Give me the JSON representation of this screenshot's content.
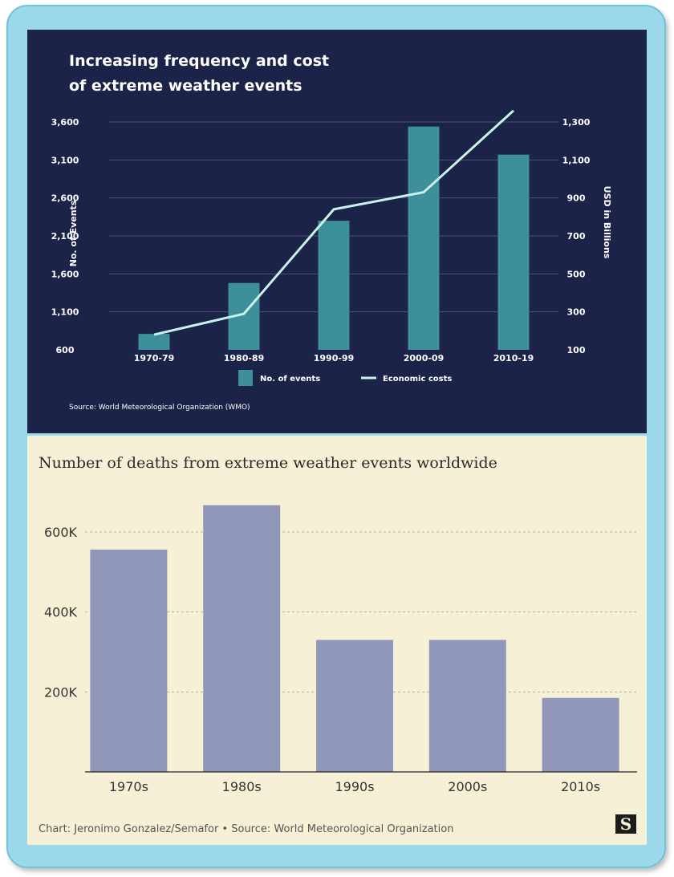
{
  "chart_data": [
    {
      "type": "bar",
      "title_lines": [
        "Increasing frequency and cost",
        "of  extreme weather events"
      ],
      "categories": [
        "1970-79",
        "1980-89",
        "1990-99",
        "2000-09",
        "2010-19"
      ],
      "ylabel": "No. of Events",
      "y2label": "USD in Billions",
      "ylim": [
        600,
        3600
      ],
      "y_ticks": [
        "3,600",
        "3,100",
        "2,600",
        "2,100",
        "1,600",
        "1,100",
        "600"
      ],
      "y2lim": [
        100,
        1300
      ],
      "y2_ticks": [
        "1,300",
        "1,100",
        "900",
        "700",
        "500",
        "300",
        "100"
      ],
      "series": [
        {
          "name": "No. of events",
          "type": "bar",
          "axis": "left",
          "values": [
            810,
            1480,
            2300,
            3540,
            3170
          ]
        },
        {
          "name": "Economic costs",
          "type": "line",
          "axis": "right",
          "values": [
            180,
            290,
            840,
            930,
            1360
          ]
        }
      ],
      "source": "Source: World Meteorological Organization (WMO)",
      "grid": true,
      "legend_position": "bottom",
      "colors": {
        "background": "#1c2349",
        "bar": "#3d8f99",
        "line": "#c9f3ec",
        "grid": "#4a5174"
      }
    },
    {
      "type": "bar",
      "title": "Number of deaths from extreme weather events worldwide",
      "categories": [
        "1970s",
        "1980s",
        "1990s",
        "2000s",
        "2010s"
      ],
      "values": [
        556000,
        667000,
        330000,
        330000,
        185000
      ],
      "ylim": [
        0,
        700000
      ],
      "y_ticks": [
        "600K",
        "400K",
        "200K"
      ],
      "y_tick_values": [
        600000,
        400000,
        200000
      ],
      "source": "Chart: Jeronimo Gonzalez/Semafor • Source: World Meteorological Organization",
      "logo": "S",
      "grid": true,
      "colors": {
        "background": "#f6f1d6",
        "bar": "#9097b8",
        "grid": "#b5b09a"
      }
    }
  ]
}
